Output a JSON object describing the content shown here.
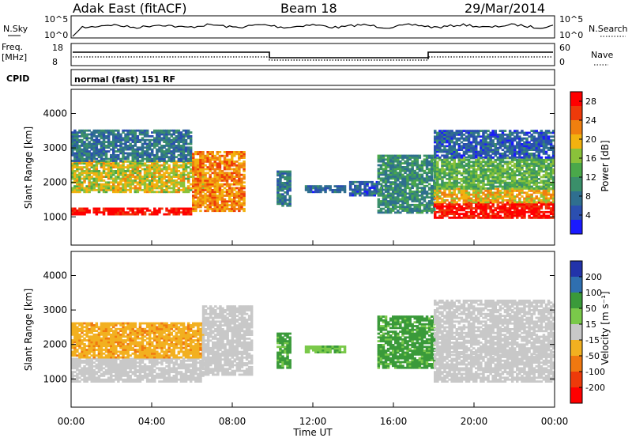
{
  "header": {
    "radar": "Adak East (fitACF)",
    "beam": "Beam 18",
    "date": "29/Mar/2014"
  },
  "aux_panels": {
    "nsky_label": "N.Sky",
    "nsky_ticks": [
      "10^5",
      "10^0"
    ],
    "nsearch_label": "N.Search",
    "nsearch_ticks": [
      "10^5",
      "10^0"
    ],
    "freq_label_1": "Freq.",
    "freq_label_2": "[MHz]",
    "freq_ticks": [
      "18",
      "8"
    ],
    "nave_label": "Nave",
    "nave_ticks": [
      "60",
      "0"
    ],
    "cpid_label": "CPID",
    "cpid_text": "normal (fast) 151 RF"
  },
  "chart_data": [
    {
      "type": "heatmap",
      "name": "power",
      "ylabel": "Slant Range [km]",
      "xlabel": "Time UT",
      "xticks": [
        "00:00",
        "04:00",
        "08:00",
        "12:00",
        "16:00",
        "20:00",
        "00:00"
      ],
      "yticks": [
        "1000",
        "2000",
        "3000",
        "4000"
      ],
      "x_range_hours": [
        0,
        24
      ],
      "y_range_km": [
        180,
        4700
      ],
      "colorbar": {
        "label": "Power [dB]",
        "ticks": [
          "4",
          "8",
          "12",
          "16",
          "20",
          "24",
          "28"
        ],
        "range": [
          0,
          30
        ],
        "colors": [
          "#1a1aff",
          "#2b4fb0",
          "#2f6f8f",
          "#3a8f6a",
          "#4aa84a",
          "#8ac23a",
          "#f2b20f",
          "#f07f0f",
          "#ee3a0a",
          "#ff0000"
        ]
      },
      "bands": [
        {
          "start": 0.0,
          "end": 6.0,
          "r0": 1050,
          "r1": 1250,
          "value": 28
        },
        {
          "start": 0.0,
          "end": 6.5,
          "r0": 1700,
          "r1": 2600,
          "value": 18
        },
        {
          "start": 0.0,
          "end": 6.0,
          "r0": 2600,
          "r1": 3500,
          "value": 8
        },
        {
          "start": 6.0,
          "end": 8.6,
          "r0": 1150,
          "r1": 2900,
          "value": 22
        },
        {
          "start": 10.2,
          "end": 10.9,
          "r0": 1300,
          "r1": 2300,
          "value": 8
        },
        {
          "start": 11.6,
          "end": 13.6,
          "r0": 1700,
          "r1": 1900,
          "value": 6
        },
        {
          "start": 13.8,
          "end": 15.4,
          "r0": 1600,
          "r1": 2000,
          "value": 6
        },
        {
          "start": 15.2,
          "end": 18.0,
          "r0": 1100,
          "r1": 2800,
          "value": 10
        },
        {
          "start": 18.0,
          "end": 24.0,
          "r0": 950,
          "r1": 1400,
          "value": 28
        },
        {
          "start": 18.0,
          "end": 24.0,
          "r0": 1400,
          "r1": 1800,
          "value": 20
        },
        {
          "start": 18.0,
          "end": 24.0,
          "r0": 1800,
          "r1": 2700,
          "value": 14
        },
        {
          "start": 18.0,
          "end": 24.0,
          "r0": 2700,
          "r1": 3500,
          "value": 6
        }
      ]
    },
    {
      "type": "heatmap",
      "name": "velocity",
      "ylabel": "Slant Range [km]",
      "xlabel": "Time UT",
      "xticks": [
        "00:00",
        "04:00",
        "08:00",
        "12:00",
        "16:00",
        "20:00",
        "00:00"
      ],
      "yticks": [
        "1000",
        "2000",
        "3000",
        "4000"
      ],
      "x_range_hours": [
        0,
        24
      ],
      "y_range_km": [
        180,
        4700
      ],
      "colorbar": {
        "label": "Velocity [m s⁻¹]",
        "ticks": [
          "200",
          "100",
          "50",
          "15",
          "-15",
          "-50",
          "-100",
          "-200"
        ],
        "colors": [
          "#2233aa",
          "#2f6fb0",
          "#3a9a3a",
          "#7ac94a",
          "#c8c8c8",
          "#f2b020",
          "#f07810",
          "#ee3a0a",
          "#ff0000"
        ]
      },
      "bands": [
        {
          "start": 0.0,
          "end": 6.5,
          "r0": 900,
          "r1": 1600,
          "value": 0
        },
        {
          "start": 0.0,
          "end": 6.5,
          "r0": 1600,
          "r1": 2600,
          "value": -40
        },
        {
          "start": 6.5,
          "end": 9.0,
          "r0": 1100,
          "r1": 3100,
          "value": 0
        },
        {
          "start": 10.2,
          "end": 10.9,
          "r0": 1300,
          "r1": 2300,
          "value": 60
        },
        {
          "start": 11.6,
          "end": 13.6,
          "r0": 1750,
          "r1": 1950,
          "value": 40
        },
        {
          "start": 15.2,
          "end": 18.0,
          "r0": 1300,
          "r1": 2800,
          "value": 60
        },
        {
          "start": 18.0,
          "end": 24.0,
          "r0": 900,
          "r1": 1700,
          "value": 0
        },
        {
          "start": 18.0,
          "end": 24.0,
          "r0": 1700,
          "r1": 2200,
          "value": 0
        },
        {
          "start": 18.0,
          "end": 24.0,
          "r0": 2200,
          "r1": 3300,
          "value": 0
        }
      ]
    }
  ]
}
